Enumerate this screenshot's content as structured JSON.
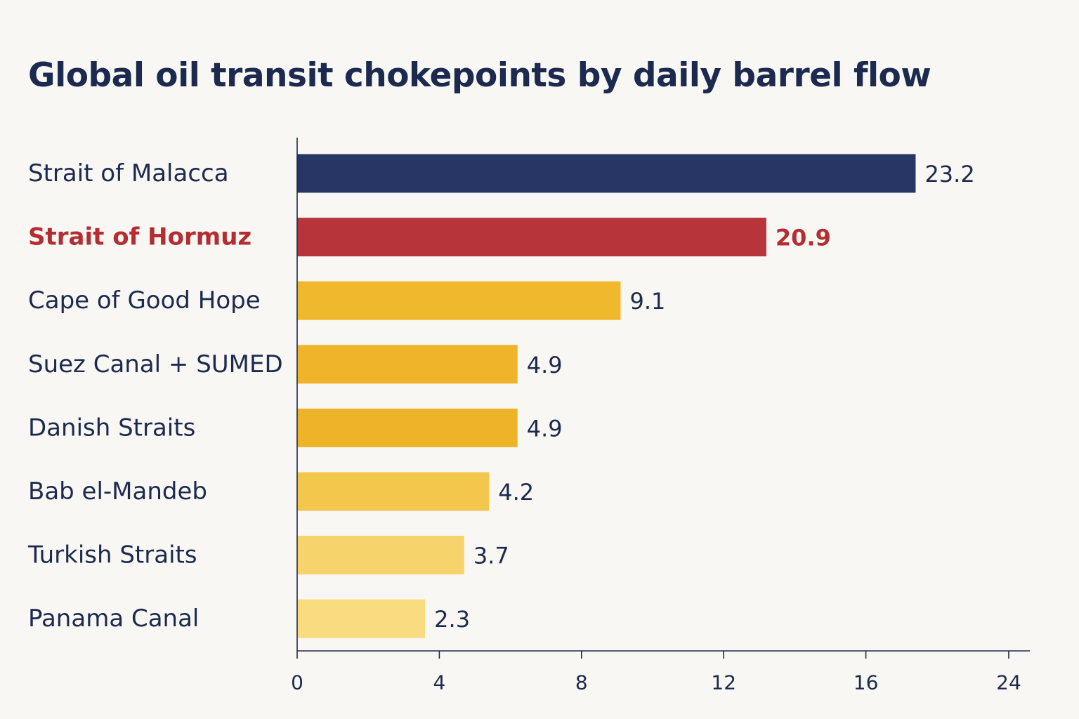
{
  "chart_data": {
    "type": "bar",
    "orientation": "horizontal",
    "title": "Global oil transit chokepoints by daily barrel flow",
    "categories": [
      "Strait of Malacca",
      "Strait of Hormuz",
      "Cape of Good Hope",
      "Suez Canal + SUMED",
      "Danish Straits",
      "Bab el-Mandeb",
      "Turkish Straits",
      "Panama Canal"
    ],
    "values": [
      23.2,
      20.9,
      9.1,
      4.9,
      4.9,
      4.2,
      3.7,
      2.3
    ],
    "bar_lengths_on_axis": [
      17.4,
      13.2,
      9.1,
      6.2,
      6.2,
      5.4,
      4.7,
      3.6
    ],
    "data_labels": [
      "23.2",
      "20.9",
      "9.1",
      "4.9",
      "4.9",
      "4.2",
      "3.7",
      "2.3"
    ],
    "highlight_index": 1,
    "colors": [
      "#283665",
      "#b7343a",
      "#f0b92d",
      "#efb42a",
      "#eeb429",
      "#f3c64c",
      "#f6d36b",
      "#f8dc7f"
    ],
    "xlabel": "",
    "ylabel": "",
    "xlim": [
      0,
      24
    ],
    "xticks": [
      0,
      4,
      8,
      12,
      16,
      24
    ],
    "xtick_labels": [
      "0",
      "4",
      "8",
      "12",
      "16",
      "24"
    ],
    "grid": false,
    "legend": "none"
  }
}
